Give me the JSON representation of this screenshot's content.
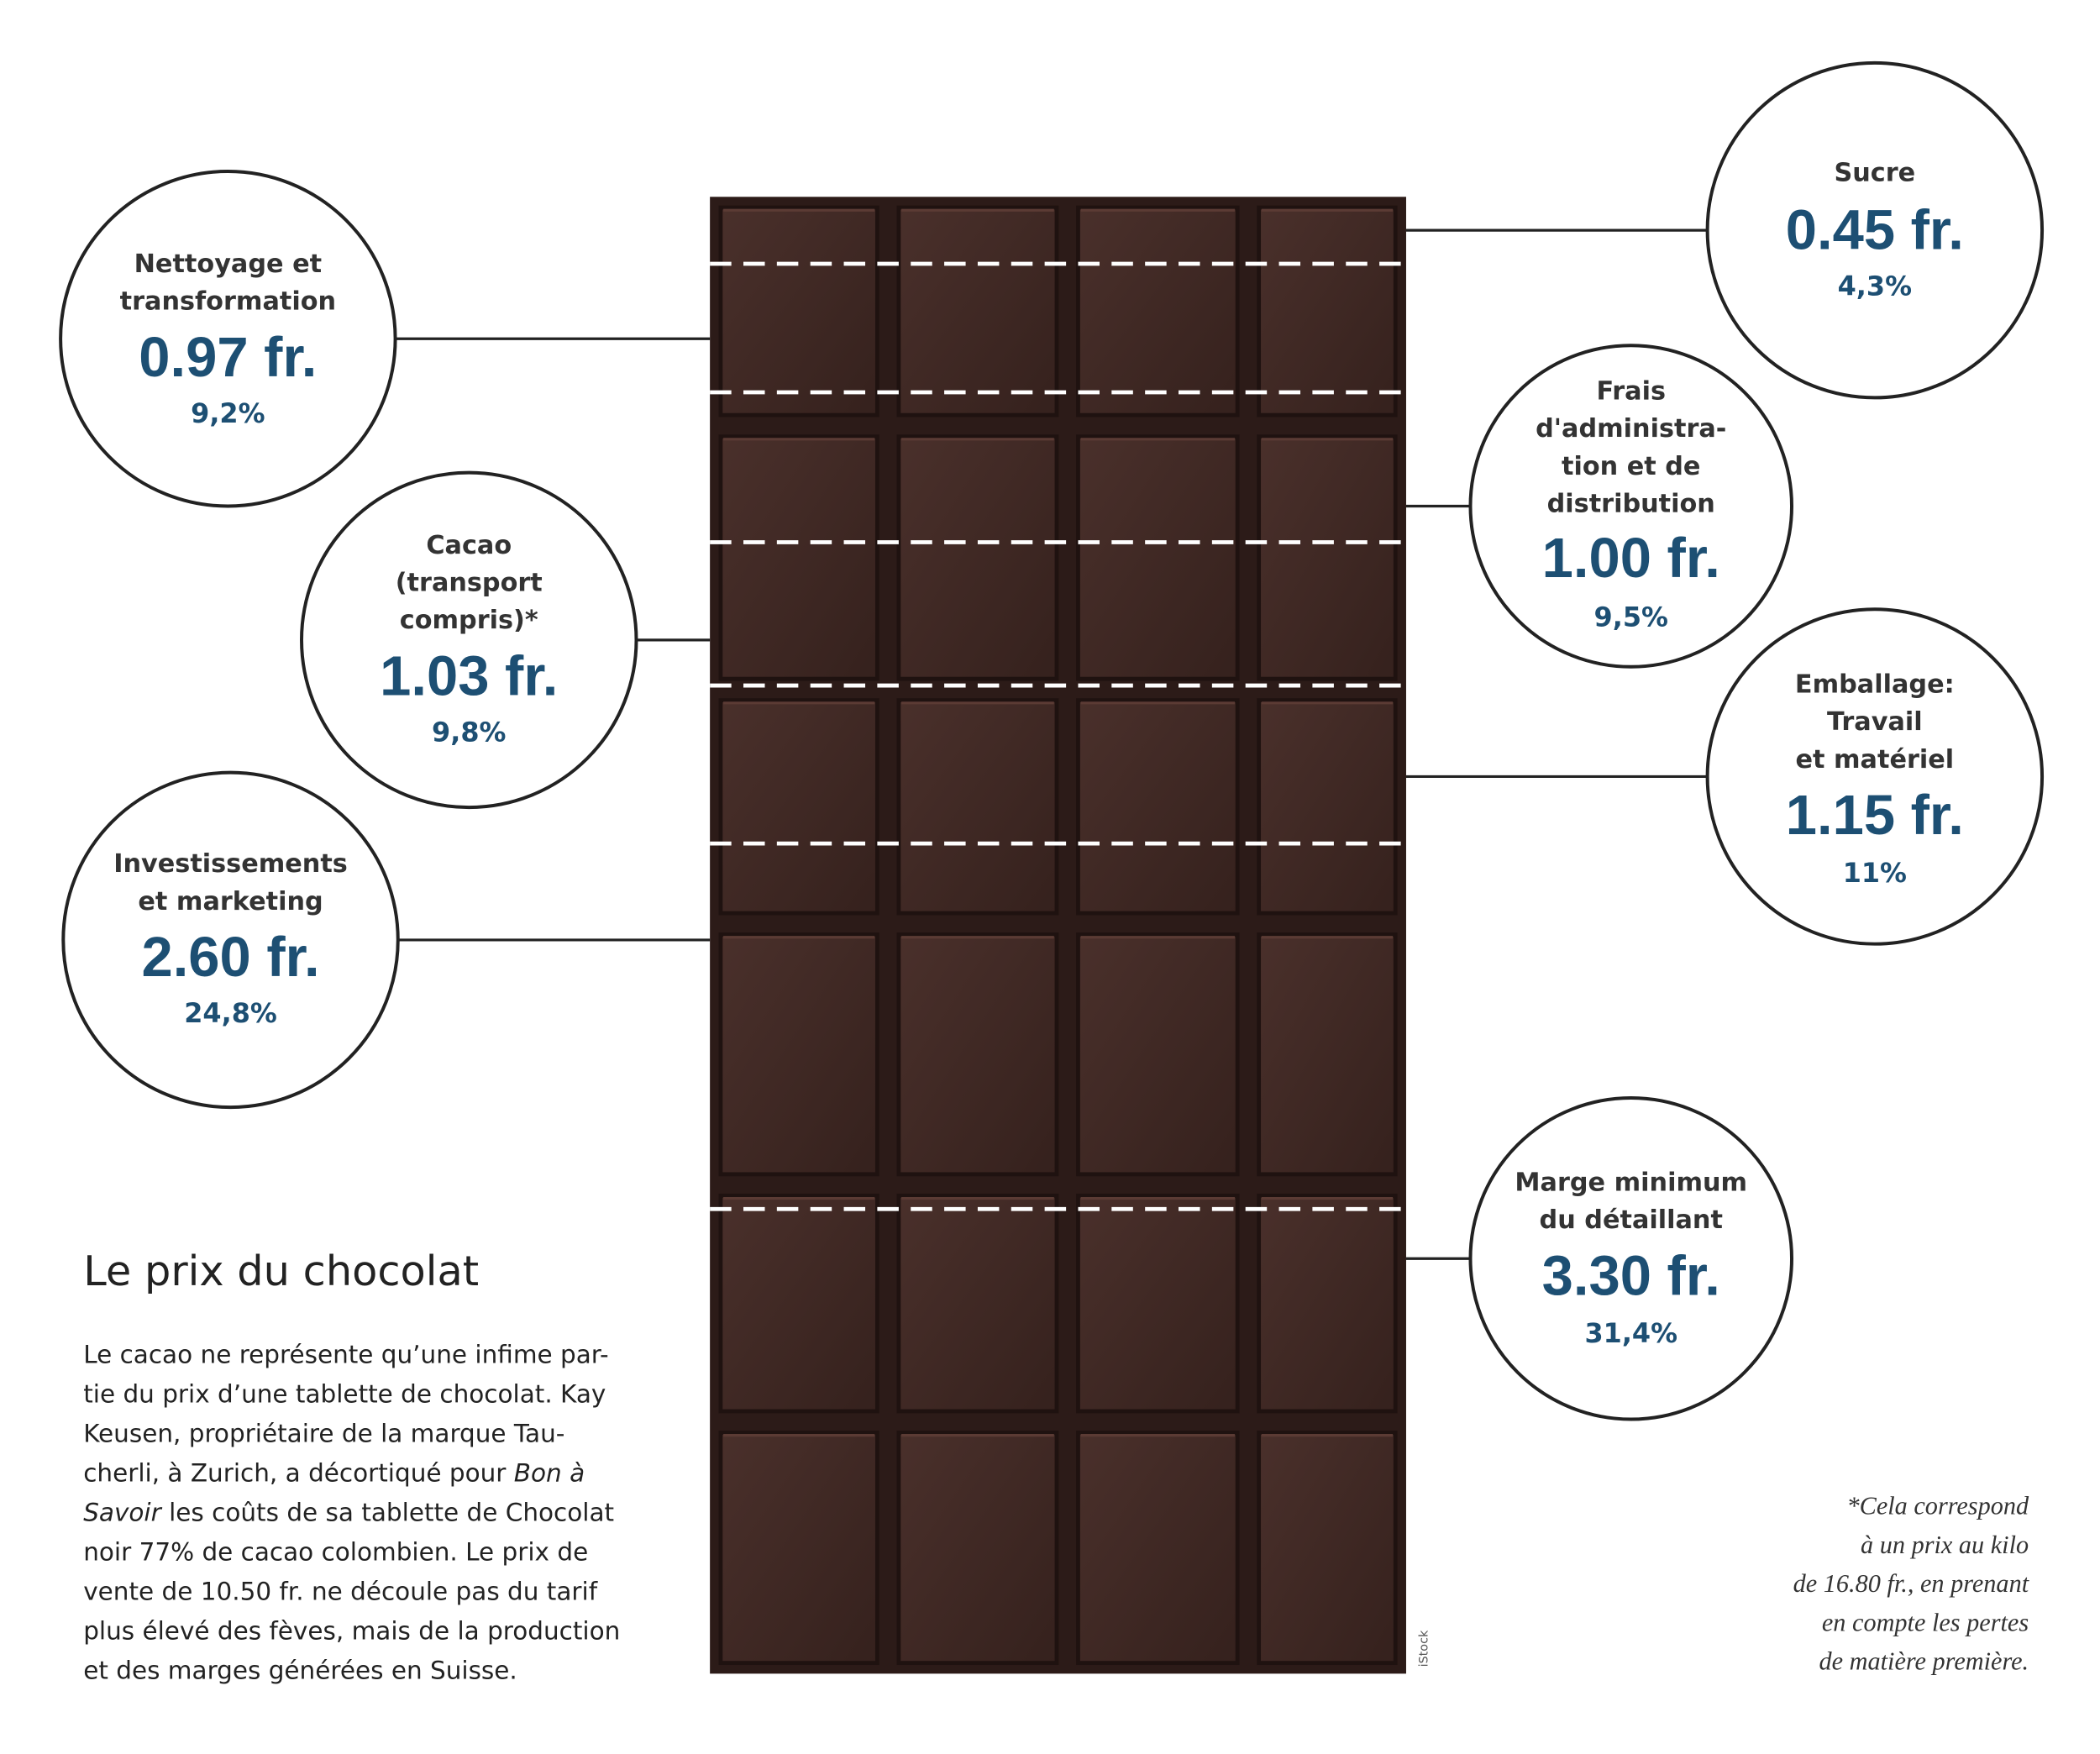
{
  "title": "Le prix du chocolat",
  "body": [
    [
      {
        "text": "Le cacao ne représente qu’une infime par-",
        "style": "normal"
      }
    ],
    [
      {
        "text": "tie du prix d’une tablette de chocolat. Kay",
        "style": "normal"
      }
    ],
    [
      {
        "text": "Keusen, propriétaire de la marque Tau-",
        "style": "normal"
      }
    ],
    [
      {
        "text": "cherli, à Zurich, a décortiqué pour ",
        "style": "normal"
      },
      {
        "text": "Bon à",
        "style": "italic"
      }
    ],
    [
      {
        "text": "Savoir",
        "style": "italic"
      },
      {
        "text": " les coûts de sa tablette de Chocolat",
        "style": "normal"
      }
    ],
    [
      {
        "text": "noir 77% de cacao colombien. Le prix de",
        "style": "normal"
      }
    ],
    [
      {
        "text": "vente de 10.50 fr. ne découle pas du tarif",
        "style": "normal"
      }
    ],
    [
      {
        "text": "plus élevé des fèves, mais de la production",
        "style": "normal"
      }
    ],
    [
      {
        "text": "et des marges générées en Suisse.",
        "style": "normal"
      }
    ]
  ],
  "items": [
    {
      "label": [
        "Sucre"
      ],
      "amount": "0.45 fr.",
      "percent": "4,3%"
    },
    {
      "label": [
        "Nettoyage et",
        "transformation"
      ],
      "amount": "0.97 fr.",
      "percent": "9,2%"
    },
    {
      "label": [
        "Frais",
        "d'administra-",
        "tion et de",
        "distribution"
      ],
      "amount": "1.00 fr.",
      "percent": "9,5%"
    },
    {
      "label": [
        "Cacao",
        "(transport",
        "compris)*"
      ],
      "amount": "1.03 fr.",
      "percent": "9,8%"
    },
    {
      "label": [
        "Emballage:",
        "Travail",
        "et matériel"
      ],
      "amount": "1.15 fr.",
      "percent": "11%"
    },
    {
      "label": [
        "Investissements",
        "et marketing"
      ],
      "amount": "2.60 fr.",
      "percent": "24,8%"
    },
    {
      "label": [
        "Marge minimum",
        "du détaillant"
      ],
      "amount": "3.30 fr.",
      "percent": "31,4%"
    }
  ],
  "footnote": [
    "*Cela correspond",
    "à un prix au kilo",
    "de 16.80 fr., en prenant",
    "en compte les pertes",
    "de matière première."
  ],
  "credit": "iStock"
}
